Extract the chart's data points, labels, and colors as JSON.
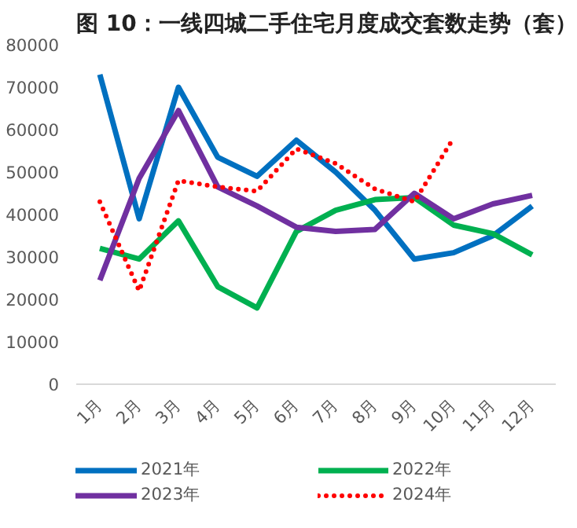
{
  "chart_data": {
    "type": "line",
    "title": "图 10：一线四城二手住宅月度成交套数走势（套）",
    "categories": [
      "1月",
      "2月",
      "3月",
      "4月",
      "5月",
      "6月",
      "7月",
      "8月",
      "9月",
      "10月",
      "11月",
      "12月"
    ],
    "series": [
      {
        "name": "2021年",
        "color": "#0070c0",
        "line_style": "solid",
        "values": [
          73000,
          39000,
          70000,
          53500,
          49000,
          57500,
          50000,
          41000,
          29500,
          31000,
          35000,
          42000
        ]
      },
      {
        "name": "2022年",
        "color": "#00b050",
        "line_style": "solid",
        "values": [
          32000,
          29500,
          38500,
          23000,
          18000,
          36000,
          41000,
          43500,
          44000,
          37500,
          35500,
          30500
        ]
      },
      {
        "name": "2023年",
        "color": "#7030a0",
        "line_style": "solid",
        "values": [
          24500,
          48500,
          64500,
          46500,
          42000,
          37000,
          36000,
          36500,
          45000,
          39000,
          42500,
          44500
        ]
      },
      {
        "name": "2024年",
        "color": "#ff0000",
        "line_style": "dotted",
        "values": [
          43000,
          22000,
          48000,
          46500,
          45500,
          55500,
          52000,
          46000,
          43000,
          58000,
          null,
          null
        ]
      }
    ],
    "ylim": [
      0,
      80000
    ],
    "yticks": [
      0,
      10000,
      20000,
      30000,
      40000,
      50000,
      60000,
      70000,
      80000
    ],
    "grid": false,
    "legend": "bottom"
  }
}
